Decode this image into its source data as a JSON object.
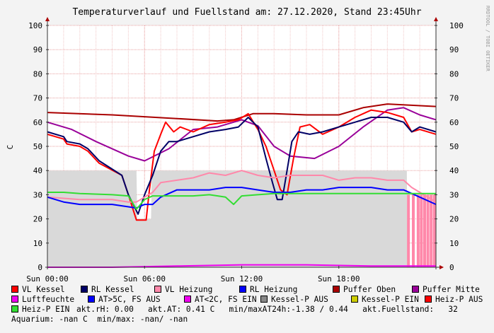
{
  "title": "Temperaturverlauf und Fuellstand am: 27.12.2020, Stand 23:45Uhr",
  "watermark": "RRDTOOL / TOBI OETIKER",
  "ylabel": "C",
  "chart_data": {
    "type": "line",
    "title": "Temperaturverlauf und Fuellstand am: 27.12.2020, Stand 23:45Uhr",
    "ylabel": "C",
    "ylim": [
      0,
      100
    ],
    "yticks": [
      0,
      10,
      20,
      30,
      40,
      50,
      60,
      70,
      80,
      90,
      100
    ],
    "xlim": [
      0,
      24
    ],
    "xticks": [
      {
        "value": 0,
        "label": "Sun 00:00"
      },
      {
        "value": 6,
        "label": "Sun 06:00"
      },
      {
        "value": 12,
        "label": "Sun 12:00"
      },
      {
        "value": 18,
        "label": "Sun 18:00"
      }
    ],
    "grid": true,
    "legend_position": "bottom",
    "series": [
      {
        "name": "Kessel-P AUS",
        "color": "#d9d9d9",
        "kind": "area",
        "x": [
          0,
          5.5,
          5.55,
          6.4,
          6.45,
          14.9,
          15.0,
          22.2,
          22.25,
          24
        ],
        "y": [
          40,
          40,
          20,
          20,
          40,
          40,
          40,
          40,
          0,
          0
        ]
      },
      {
        "name": "Heiz-P AUS",
        "color": "#ff88aa",
        "kind": "bars",
        "x": [
          22.3,
          22.6,
          22.9,
          23.1,
          23.3,
          23.5,
          23.7,
          23.9
        ],
        "y": [
          30,
          30,
          30,
          30,
          30,
          30,
          30,
          30
        ]
      },
      {
        "name": "Puffer Oben",
        "color": "#aa0000",
        "x": [
          0,
          4,
          8,
          10.5,
          11.5,
          12.7,
          14,
          16,
          18,
          19.5,
          21,
          22.5,
          24
        ],
        "y": [
          64,
          63,
          61.5,
          60.5,
          61,
          63.5,
          63.5,
          63,
          63,
          66,
          67.5,
          67,
          66.5
        ]
      },
      {
        "name": "Puffer Mitte",
        "color": "#990099",
        "x": [
          0,
          1.5,
          3,
          5,
          6,
          7.5,
          9,
          10.5,
          12,
          13,
          14,
          15,
          16.5,
          18,
          19.5,
          21,
          22,
          23,
          24
        ],
        "y": [
          60,
          57,
          52,
          46,
          44,
          49,
          57,
          58,
          61,
          58.5,
          50,
          46,
          45,
          50,
          58,
          65,
          66,
          63,
          61
        ]
      },
      {
        "name": "VL Kessel",
        "color": "#ff0000",
        "x": [
          0,
          1,
          1.2,
          2,
          2.5,
          3.2,
          4.6,
          5,
          5.5,
          6.1,
          6.3,
          6.6,
          7,
          7.3,
          7.8,
          8.2,
          9,
          10,
          11,
          11.8,
          12.4,
          13,
          13.5,
          14,
          14.4,
          14.8,
          15.2,
          15.6,
          16.2,
          17,
          18,
          19,
          20,
          21,
          22,
          22.5,
          23,
          24
        ],
        "y": [
          55,
          53,
          51,
          50,
          48,
          43,
          38,
          30,
          19.5,
          19.5,
          32,
          48,
          55,
          60,
          56,
          58,
          56,
          59,
          60,
          61,
          63.5,
          57,
          50,
          40,
          32,
          30,
          45,
          58,
          59,
          55,
          58,
          62,
          65,
          64,
          62,
          56,
          57,
          55
        ]
      },
      {
        "name": "RL Kessel",
        "color": "#000066",
        "x": [
          0,
          1,
          1.2,
          2,
          2.5,
          3.2,
          4.6,
          5,
          5.6,
          6,
          6.5,
          7,
          7.5,
          8,
          9,
          10,
          11,
          11.8,
          12.4,
          13,
          13.5,
          13.9,
          14.2,
          14.5,
          14.8,
          15.1,
          15.5,
          16.2,
          17,
          18,
          19,
          20,
          21,
          22,
          22.5,
          23,
          24
        ],
        "y": [
          56,
          54,
          52,
          51,
          49,
          44,
          38,
          30,
          22,
          30,
          38,
          48,
          52,
          52,
          54,
          56,
          57,
          58,
          62,
          58,
          45,
          35,
          28,
          28,
          40,
          52,
          56,
          55,
          56,
          58,
          60,
          62,
          62,
          60,
          56,
          58,
          56
        ]
      },
      {
        "name": "VL Heizung",
        "color": "#ff88aa",
        "x": [
          0,
          2,
          4,
          5,
          5.5,
          6,
          6.5,
          7,
          8,
          9,
          10,
          11,
          12,
          13,
          14,
          15,
          16,
          17,
          18,
          19,
          20,
          21,
          22,
          22.5,
          23,
          24
        ],
        "y": [
          29,
          28,
          28,
          27,
          27,
          29,
          31,
          35,
          36,
          37,
          39,
          38,
          40,
          38,
          37,
          38,
          38,
          38,
          36,
          37,
          37,
          36,
          36,
          33,
          31,
          27
        ]
      },
      {
        "name": "RL Heizung",
        "color": "#0000ff",
        "x": [
          0,
          1,
          2,
          3,
          4,
          5,
          5.5,
          6,
          6.5,
          7,
          8,
          9,
          10,
          11,
          12,
          13,
          14,
          15,
          16,
          17,
          18,
          19,
          20,
          21,
          22,
          23,
          24
        ],
        "y": [
          29,
          27,
          26,
          26,
          26,
          25,
          24.5,
          26,
          26,
          29,
          32,
          32,
          32,
          33,
          33,
          32,
          31,
          31,
          32,
          32,
          33,
          33,
          33,
          32,
          32,
          29,
          26
        ]
      },
      {
        "name": "Heiz-P EIN",
        "color": "#33dd33",
        "x": [
          0,
          1,
          2,
          4,
          5,
          5.5,
          6,
          6.5,
          7,
          8,
          9,
          10,
          11,
          11.5,
          12,
          13,
          14,
          15,
          16,
          17,
          18,
          19,
          20,
          21,
          22,
          23,
          24
        ],
        "y": [
          31,
          31,
          30.5,
          30,
          29.5,
          24,
          28,
          29.5,
          29.5,
          29.5,
          29.5,
          30,
          29,
          26,
          29.5,
          30,
          30.5,
          30.5,
          30.5,
          30.5,
          30.5,
          30.5,
          30.5,
          30.5,
          30.5,
          30.5,
          30.5
        ]
      },
      {
        "name": "Luftfeuchte",
        "color": "#ee00ee",
        "x": [
          0,
          4,
          8,
          12,
          16,
          20,
          24
        ],
        "y": [
          0,
          0,
          0.5,
          1,
          1,
          0.5,
          0.5
        ]
      }
    ]
  },
  "legend": {
    "row1": [
      {
        "label": "VL Kessel",
        "color": "#ff0000"
      },
      {
        "label": "RL Kessel",
        "color": "#000066"
      },
      {
        "label": "VL Heizung",
        "color": "#ff88aa"
      },
      {
        "label": "RL Heizung",
        "color": "#0000ff"
      },
      {
        "label": "Puffer Oben",
        "color": "#aa0000"
      },
      {
        "label": "Puffer Mitte",
        "color": "#990099"
      }
    ],
    "row2": [
      {
        "label": "Luftfeuchte",
        "color": "#ee00ee"
      },
      {
        "label": "AT>5C, FS AUS",
        "color": "#0000ff"
      },
      {
        "label": "AT<2C, FS EIN",
        "color": "#ee00ee"
      },
      {
        "label": "Kessel-P AUS",
        "color": "#888888"
      },
      {
        "label": "Kessel-P EIN",
        "color": "#cccc00"
      },
      {
        "label": "Heiz-P AUS",
        "color": "#ff0000"
      }
    ],
    "row3_item": {
      "label": "Heiz-P EIN",
      "color": "#33dd33"
    },
    "row3_text": "akt.rH: 0.00   akt.AT: 0.41 C   min/maxAT24h:-1.38 / 0.44   akt.Fuellstand:   32",
    "row4_text": "Aquarium: -nan C  min/max: -nan/ -nan"
  }
}
